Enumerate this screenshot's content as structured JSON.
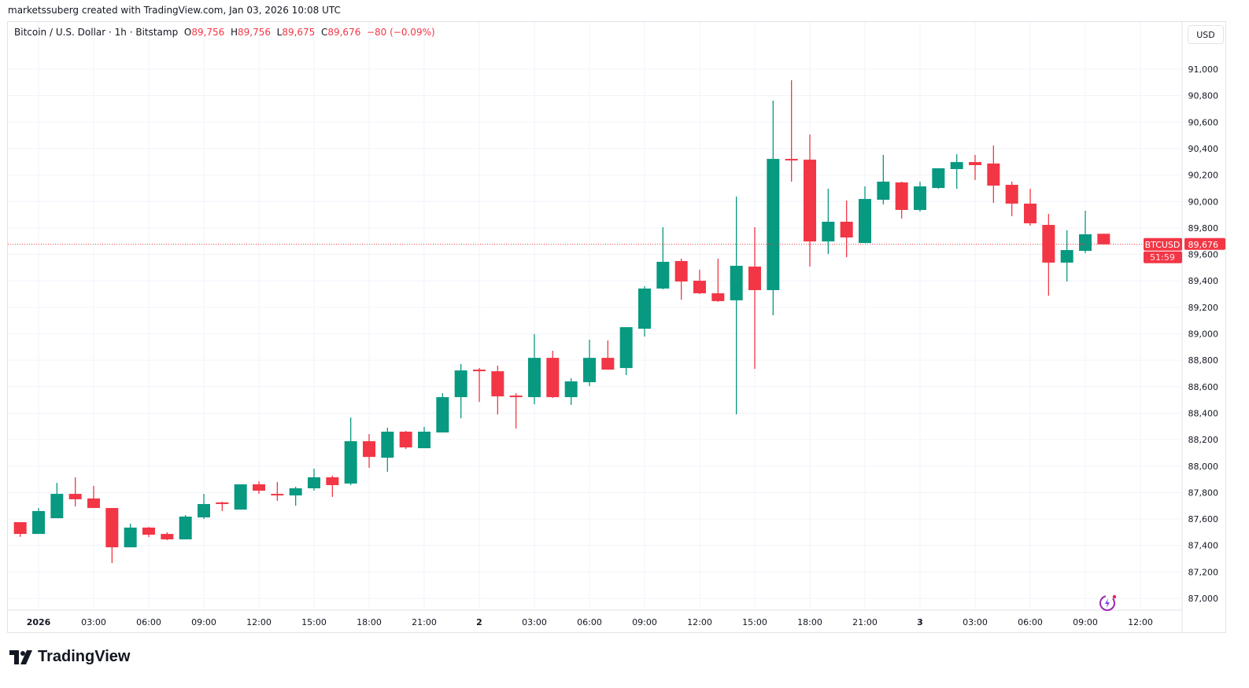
{
  "credit": "marketssuberg created with TradingView.com, Jan 03, 2026 10:08 UTC",
  "legend": {
    "symbol": "Bitcoin / U.S. Dollar · 1h · Bitstamp",
    "o_label": "O",
    "o": "89,756",
    "h_label": "H",
    "h": "89,756",
    "l_label": "L",
    "l": "89,675",
    "c_label": "C",
    "c": "89,676",
    "change": "−80 (−0.09%)"
  },
  "currency_button": "USD",
  "price_tag": {
    "symbol": "BTCUSD",
    "price": "89,676",
    "countdown": "51:59"
  },
  "logo_text": "TradingView",
  "colors": {
    "up": "#089981",
    "down": "#f23645",
    "grid": "#f0f3fa",
    "border": "#e0e3eb"
  },
  "icons": [
    "tradingview-logo-icon",
    "assistant-sparkle-icon"
  ],
  "chart_data": {
    "type": "candlestick",
    "title": "",
    "interval": "1h",
    "ylim": [
      87000,
      91000
    ],
    "grid": true,
    "y_ticks": [
      "87,000",
      "87,200",
      "87,400",
      "87,600",
      "87,800",
      "88,000",
      "88,200",
      "88,400",
      "88,600",
      "88,800",
      "89,000",
      "89,200",
      "89,400",
      "89,600",
      "89,800",
      "90,000",
      "90,200",
      "90,400",
      "90,600",
      "90,800",
      "91,000"
    ],
    "x_ticks": [
      "2026",
      "03:00",
      "06:00",
      "09:00",
      "12:00",
      "15:00",
      "18:00",
      "21:00",
      "2",
      "03:00",
      "06:00",
      "09:00",
      "12:00",
      "15:00",
      "18:00",
      "21:00",
      "3",
      "03:00",
      "06:00",
      "09:00",
      "12:00"
    ],
    "current_price": 89676,
    "candles": [
      {
        "t": "Dec 31 23:00",
        "o": 87576,
        "h": 87576,
        "l": 87465,
        "c": 87487
      },
      {
        "t": "Jan 1 00:00",
        "o": 87487,
        "h": 87683,
        "l": 87487,
        "c": 87660
      },
      {
        "t": "Jan 1 01:00",
        "o": 87606,
        "h": 87873,
        "l": 87606,
        "c": 87790
      },
      {
        "t": "Jan 1 02:00",
        "o": 87790,
        "h": 87915,
        "l": 87695,
        "c": 87749
      },
      {
        "t": "Jan 1 03:00",
        "o": 87755,
        "h": 87850,
        "l": 87683,
        "c": 87683
      },
      {
        "t": "Jan 1 04:00",
        "o": 87683,
        "h": 87683,
        "l": 87267,
        "c": 87386
      },
      {
        "t": "Jan 1 05:00",
        "o": 87386,
        "h": 87564,
        "l": 87386,
        "c": 87535
      },
      {
        "t": "Jan 1 06:00",
        "o": 87535,
        "h": 87540,
        "l": 87463,
        "c": 87481
      },
      {
        "t": "Jan 1 07:00",
        "o": 87487,
        "h": 87499,
        "l": 87440,
        "c": 87446
      },
      {
        "t": "Jan 1 08:00",
        "o": 87446,
        "h": 87630,
        "l": 87446,
        "c": 87618
      },
      {
        "t": "Jan 1 09:00",
        "o": 87612,
        "h": 87790,
        "l": 87600,
        "c": 87713
      },
      {
        "t": "Jan 1 10:00",
        "o": 87725,
        "h": 87731,
        "l": 87660,
        "c": 87713
      },
      {
        "t": "Jan 1 11:00",
        "o": 87671,
        "h": 87862,
        "l": 87671,
        "c": 87862
      },
      {
        "t": "Jan 1 12:00",
        "o": 87862,
        "h": 87885,
        "l": 87790,
        "c": 87814
      },
      {
        "t": "Jan 1 13:00",
        "o": 87790,
        "h": 87880,
        "l": 87737,
        "c": 87778
      },
      {
        "t": "Jan 1 14:00",
        "o": 87778,
        "h": 87844,
        "l": 87701,
        "c": 87832
      },
      {
        "t": "Jan 1 15:00",
        "o": 87832,
        "h": 87980,
        "l": 87814,
        "c": 87915
      },
      {
        "t": "Jan 1 16:00",
        "o": 87915,
        "h": 87927,
        "l": 87767,
        "c": 87856
      },
      {
        "t": "Jan 1 17:00",
        "o": 87868,
        "h": 88367,
        "l": 87856,
        "c": 88188
      },
      {
        "t": "Jan 1 18:00",
        "o": 88188,
        "h": 88242,
        "l": 87987,
        "c": 88069
      },
      {
        "t": "Jan 1 19:00",
        "o": 88063,
        "h": 88290,
        "l": 87957,
        "c": 88260
      },
      {
        "t": "Jan 1 20:00",
        "o": 88260,
        "h": 88266,
        "l": 88129,
        "c": 88141
      },
      {
        "t": "Jan 1 21:00",
        "o": 88135,
        "h": 88296,
        "l": 88135,
        "c": 88260
      },
      {
        "t": "Jan 1 22:00",
        "o": 88254,
        "h": 88551,
        "l": 88254,
        "c": 88521
      },
      {
        "t": "Jan 1 23:00",
        "o": 88521,
        "h": 88771,
        "l": 88361,
        "c": 88723
      },
      {
        "t": "Jan 2 00:00",
        "o": 88729,
        "h": 88741,
        "l": 88485,
        "c": 88717
      },
      {
        "t": "Jan 2 01:00",
        "o": 88717,
        "h": 88759,
        "l": 88390,
        "c": 88527
      },
      {
        "t": "Jan 2 02:00",
        "o": 88533,
        "h": 88551,
        "l": 88284,
        "c": 88521
      },
      {
        "t": "Jan 2 03:00",
        "o": 88521,
        "h": 88997,
        "l": 88467,
        "c": 88818
      },
      {
        "t": "Jan 2 04:00",
        "o": 88818,
        "h": 88872,
        "l": 88515,
        "c": 88521
      },
      {
        "t": "Jan 2 05:00",
        "o": 88521,
        "h": 88664,
        "l": 88462,
        "c": 88640
      },
      {
        "t": "Jan 2 06:00",
        "o": 88634,
        "h": 88955,
        "l": 88604,
        "c": 88818
      },
      {
        "t": "Jan 2 07:00",
        "o": 88818,
        "h": 88949,
        "l": 88729,
        "c": 88729
      },
      {
        "t": "Jan 2 08:00",
        "o": 88741,
        "h": 89050,
        "l": 88688,
        "c": 89050
      },
      {
        "t": "Jan 2 09:00",
        "o": 89038,
        "h": 89360,
        "l": 88979,
        "c": 89342
      },
      {
        "t": "Jan 2 10:00",
        "o": 89342,
        "h": 89805,
        "l": 89336,
        "c": 89544
      },
      {
        "t": "Jan 2 11:00",
        "o": 89550,
        "h": 89568,
        "l": 89258,
        "c": 89395
      },
      {
        "t": "Jan 2 12:00",
        "o": 89401,
        "h": 89484,
        "l": 89300,
        "c": 89306
      },
      {
        "t": "Jan 2 13:00",
        "o": 89306,
        "h": 89568,
        "l": 89241,
        "c": 89247
      },
      {
        "t": "Jan 2 14:00",
        "o": 89253,
        "h": 90037,
        "l": 88391,
        "c": 89514
      },
      {
        "t": "Jan 2 15:00",
        "o": 89508,
        "h": 89805,
        "l": 88735,
        "c": 89330
      },
      {
        "t": "Jan 2 16:00",
        "o": 89330,
        "h": 90762,
        "l": 89140,
        "c": 90322
      },
      {
        "t": "Jan 2 17:00",
        "o": 90322,
        "h": 90917,
        "l": 90150,
        "c": 90310
      },
      {
        "t": "Jan 2 18:00",
        "o": 90316,
        "h": 90507,
        "l": 89508,
        "c": 89698
      },
      {
        "t": "Jan 2 19:00",
        "o": 89698,
        "h": 90096,
        "l": 89603,
        "c": 89847
      },
      {
        "t": "Jan 2 20:00",
        "o": 89847,
        "h": 90007,
        "l": 89579,
        "c": 89728
      },
      {
        "t": "Jan 2 21:00",
        "o": 89686,
        "h": 90114,
        "l": 89686,
        "c": 90019
      },
      {
        "t": "Jan 2 22:00",
        "o": 90013,
        "h": 90352,
        "l": 89978,
        "c": 90150
      },
      {
        "t": "Jan 2 23:00",
        "o": 90144,
        "h": 90150,
        "l": 89871,
        "c": 89936
      },
      {
        "t": "Jan 3 00:00",
        "o": 89936,
        "h": 90150,
        "l": 89924,
        "c": 90114
      },
      {
        "t": "Jan 3 01:00",
        "o": 90102,
        "h": 90251,
        "l": 90096,
        "c": 90251
      },
      {
        "t": "Jan 3 02:00",
        "o": 90245,
        "h": 90358,
        "l": 90096,
        "c": 90298
      },
      {
        "t": "Jan 3 03:00",
        "o": 90298,
        "h": 90352,
        "l": 90162,
        "c": 90275
      },
      {
        "t": "Jan 3 04:00",
        "o": 90287,
        "h": 90423,
        "l": 89990,
        "c": 90120
      },
      {
        "t": "Jan 3 05:00",
        "o": 90126,
        "h": 90150,
        "l": 89889,
        "c": 89984
      },
      {
        "t": "Jan 3 06:00",
        "o": 89984,
        "h": 90096,
        "l": 89817,
        "c": 89835
      },
      {
        "t": "Jan 3 07:00",
        "o": 89823,
        "h": 89906,
        "l": 89288,
        "c": 89538
      },
      {
        "t": "Jan 3 08:00",
        "o": 89538,
        "h": 89782,
        "l": 89395,
        "c": 89633
      },
      {
        "t": "Jan 3 09:00",
        "o": 89627,
        "h": 89930,
        "l": 89609,
        "c": 89752
      },
      {
        "t": "Jan 3 10:00",
        "o": 89756,
        "h": 89756,
        "l": 89675,
        "c": 89676
      }
    ]
  }
}
